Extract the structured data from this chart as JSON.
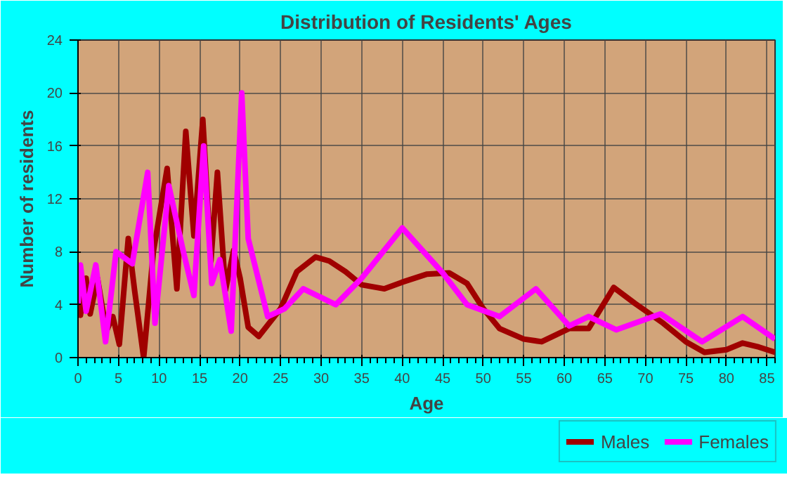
{
  "chart_data": {
    "type": "line",
    "title": "Distribution of Residents' Ages",
    "xlabel": "Age",
    "ylabel": "Number of residents",
    "xlim": [
      0,
      86
    ],
    "ylim": [
      0,
      24
    ],
    "xticks": [
      0,
      5,
      10,
      15,
      20,
      25,
      30,
      35,
      40,
      45,
      50,
      55,
      60,
      65,
      70,
      75,
      80,
      85
    ],
    "yticks": [
      0,
      4,
      8,
      12,
      16,
      20,
      24
    ],
    "grid": true,
    "legend": "bottom",
    "line_style": "solid",
    "series": [
      {
        "name": "Males",
        "color": "#a00000",
        "x": [
          0,
          0.3,
          1,
          1.5,
          2.4,
          3.5,
          4.3,
          5.1,
          6.2,
          7,
          8.1,
          9.3,
          11,
          12.2,
          13.3,
          14.3,
          15.4,
          16.4,
          17.2,
          18.2,
          19.2,
          20,
          21,
          22.3,
          25,
          27,
          29.3,
          31,
          33,
          35,
          37.8,
          40,
          43,
          45.8,
          48,
          50,
          52,
          55,
          57.2,
          60.6,
          63,
          66.1,
          68.7,
          72.2,
          75,
          77.3,
          80,
          82,
          84,
          86
        ],
        "values": [
          6.2,
          3.2,
          6,
          3.3,
          6,
          2,
          3.1,
          1,
          9,
          5,
          0,
          8,
          14.3,
          5.2,
          17.1,
          9.2,
          18,
          7.3,
          14,
          5.1,
          8.1,
          6,
          2.3,
          1.6,
          3.7,
          6.5,
          7.6,
          7.3,
          6.5,
          5.5,
          5.2,
          5.7,
          6.3,
          6.4,
          5.6,
          3.7,
          2.2,
          1.4,
          1.2,
          2.2,
          2.2,
          5.3,
          4.1,
          2.6,
          1.2,
          0.4,
          0.6,
          1.1,
          0.8,
          0.4
        ]
      },
      {
        "name": "Females",
        "color": "#ff00ff",
        "x": [
          0,
          0.3,
          1,
          2.2,
          3.4,
          4.7,
          6.7,
          8.6,
          9.5,
          11.2,
          13,
          14.3,
          15.5,
          16.5,
          17.5,
          18.9,
          20.2,
          21,
          23.4,
          25.5,
          27.8,
          31.8,
          35,
          40,
          45,
          48,
          52,
          56.5,
          60.6,
          63,
          66.4,
          71.9,
          77,
          82,
          86
        ],
        "values": [
          4,
          7,
          3.5,
          7,
          1.2,
          8,
          7.1,
          14,
          2.6,
          13,
          8,
          4.7,
          16,
          5.6,
          7.4,
          2,
          20,
          9,
          3.1,
          3.7,
          5.2,
          4,
          6,
          9.8,
          6.4,
          4,
          3.1,
          5.2,
          2.4,
          3.1,
          2.1,
          3.3,
          1.2,
          3.1,
          1.4
        ]
      }
    ]
  }
}
